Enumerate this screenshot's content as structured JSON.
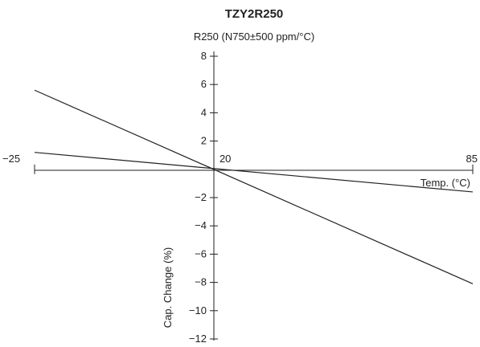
{
  "chart_data": {
    "type": "line",
    "title": "TZY2R250",
    "subtitle": "R250 (N750±500 ppm/°C)",
    "xlabel": "Temp. (°C)",
    "ylabel": "Cap. Change (%)",
    "xlim": [
      -25,
      85
    ],
    "ylim": [
      -12,
      8
    ],
    "x_tick_labels": [
      "−25",
      "20",
      "85"
    ],
    "x_ticks": [
      -25,
      20,
      85
    ],
    "y_tick_labels": [
      "8",
      "6",
      "4",
      "2",
      "−2",
      "−4",
      "−6",
      "−8",
      "−10",
      "−12"
    ],
    "y_ticks": [
      8,
      6,
      4,
      2,
      -2,
      -4,
      -6,
      -8,
      -10,
      -12
    ],
    "series": [
      {
        "x": [
          -25,
          85
        ],
        "y": [
          5.6,
          -8.1
        ]
      },
      {
        "x": [
          -25,
          85
        ],
        "y": [
          1.2,
          -1.6
        ]
      }
    ],
    "grid": false,
    "colors": {
      "line": "#222222",
      "text": "#222222"
    }
  }
}
